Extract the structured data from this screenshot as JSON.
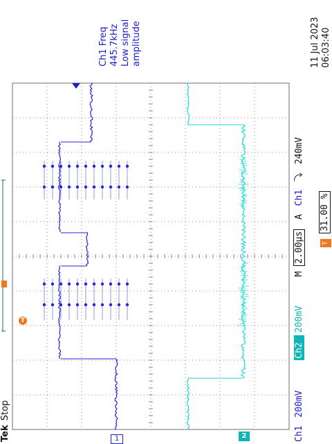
{
  "brand": "Tek",
  "acq_state": "Stop",
  "ch1_marker": "1",
  "ch2_marker": "2",
  "trigger_position_marker": "T",
  "measurement": {
    "line1": "Ch1 Freq",
    "line2": "445.7kHz",
    "line3": "Low signal",
    "line4": "amplitude"
  },
  "datetime": {
    "date": "11 Jul  2023",
    "time": "06:03:40"
  },
  "status_bar": {
    "ch1_label": "Ch1",
    "ch1_scale": "200mV",
    "ch2_label": "Ch2",
    "ch2_scale": "200mV",
    "timebase_label": "M",
    "timebase": "2.00µs",
    "trigger_mode": "A",
    "trigger_source": "Ch1",
    "trigger_slope": "⤵",
    "trigger_level": "240mV"
  },
  "trigger_position": "31.00 %",
  "colors": {
    "ch1": "#2424d8",
    "ch2": "#1fd6d6",
    "grid": "#6e6e6e",
    "accent": "#f07820"
  }
}
